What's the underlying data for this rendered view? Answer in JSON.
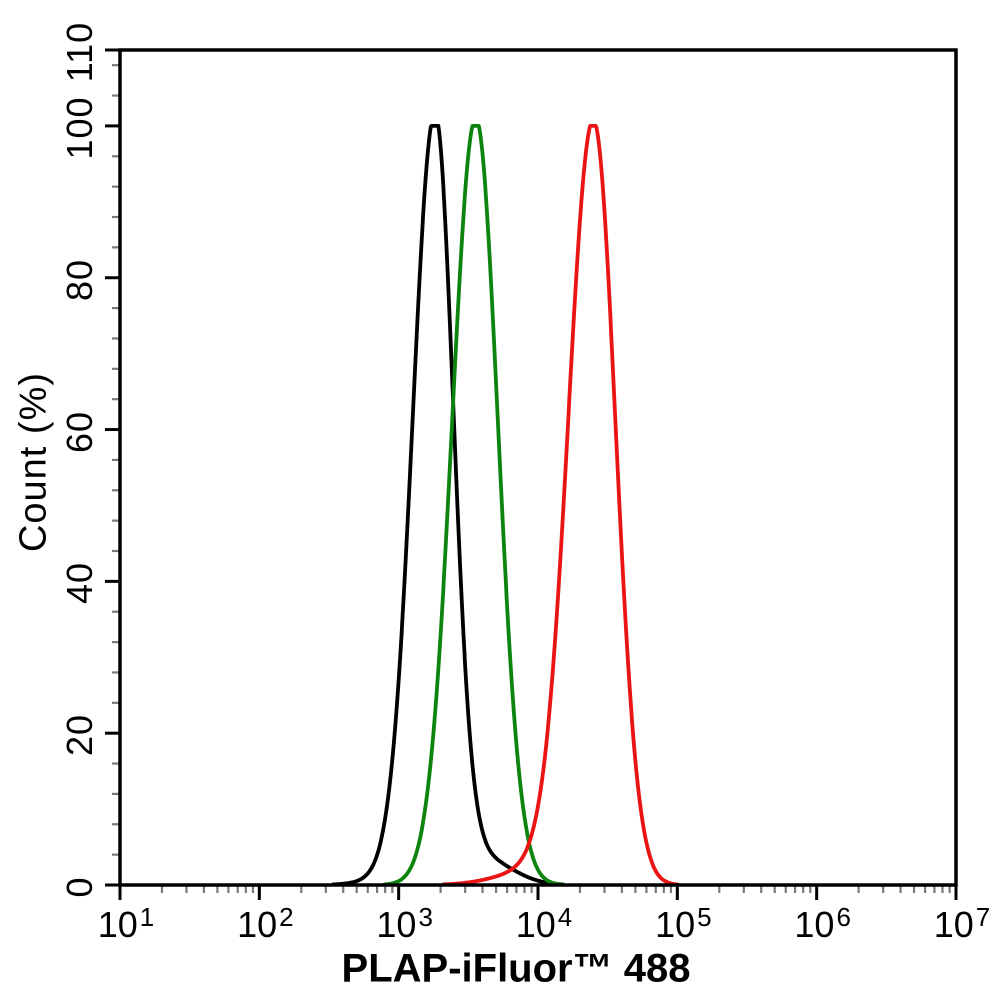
{
  "chart_data": {
    "type": "line",
    "subtype": "flow-cytometry-histogram-overlay",
    "title": "",
    "xlabel": "PLAP-iFluor™ 488",
    "ylabel": "Count (%)",
    "x_scale": "log",
    "x_tick_base": "10",
    "x_tick_exponents": [
      1,
      2,
      3,
      4,
      5,
      6,
      7
    ],
    "xlim": [
      10,
      10000000
    ],
    "ylim": [
      0,
      110
    ],
    "y_major_ticks": [
      0,
      20,
      40,
      60,
      80,
      100,
      110
    ],
    "y_tick_labels": [
      "0",
      "20",
      "40",
      "60",
      "80",
      "100",
      "110"
    ],
    "y_minor_step": 4,
    "grid": false,
    "legend": null,
    "background_color": "#ffffff",
    "axis_color": "#000000",
    "minor_tick_color": "#7a7a7a",
    "series": [
      {
        "name": "black-curve",
        "color": "#000000",
        "peak": {
          "x": 1800,
          "y": 100
        },
        "components": [
          {
            "amp": 100,
            "mu": 3.26,
            "sigma_left": 0.158,
            "sigma_right": 0.132
          },
          {
            "amp": 3.5,
            "mu": 3.6,
            "sigma_left": 0.21,
            "sigma_right": 0.21
          },
          {
            "amp": 1.2,
            "mu": 3.05,
            "sigma_left": 0.22,
            "sigma_right": 0.22
          }
        ]
      },
      {
        "name": "green-curve",
        "color": "#0d840d",
        "peak": {
          "x": 3600,
          "y": 100
        },
        "components": [
          {
            "amp": 100,
            "mu": 3.553,
            "sigma_left": 0.168,
            "sigma_right": 0.158
          },
          {
            "amp": 1.0,
            "mu": 3.55,
            "sigma_left": 0.24,
            "sigma_right": 0.24
          }
        ]
      },
      {
        "name": "red-curve",
        "color": "#ea1414",
        "peak": {
          "x": 25000,
          "y": 100
        },
        "components": [
          {
            "amp": 100,
            "mu": 4.398,
            "sigma_left": 0.178,
            "sigma_right": 0.158
          },
          {
            "amp": 2.2,
            "mu": 4.02,
            "sigma_left": 0.27,
            "sigma_right": 0.27
          }
        ]
      }
    ]
  }
}
